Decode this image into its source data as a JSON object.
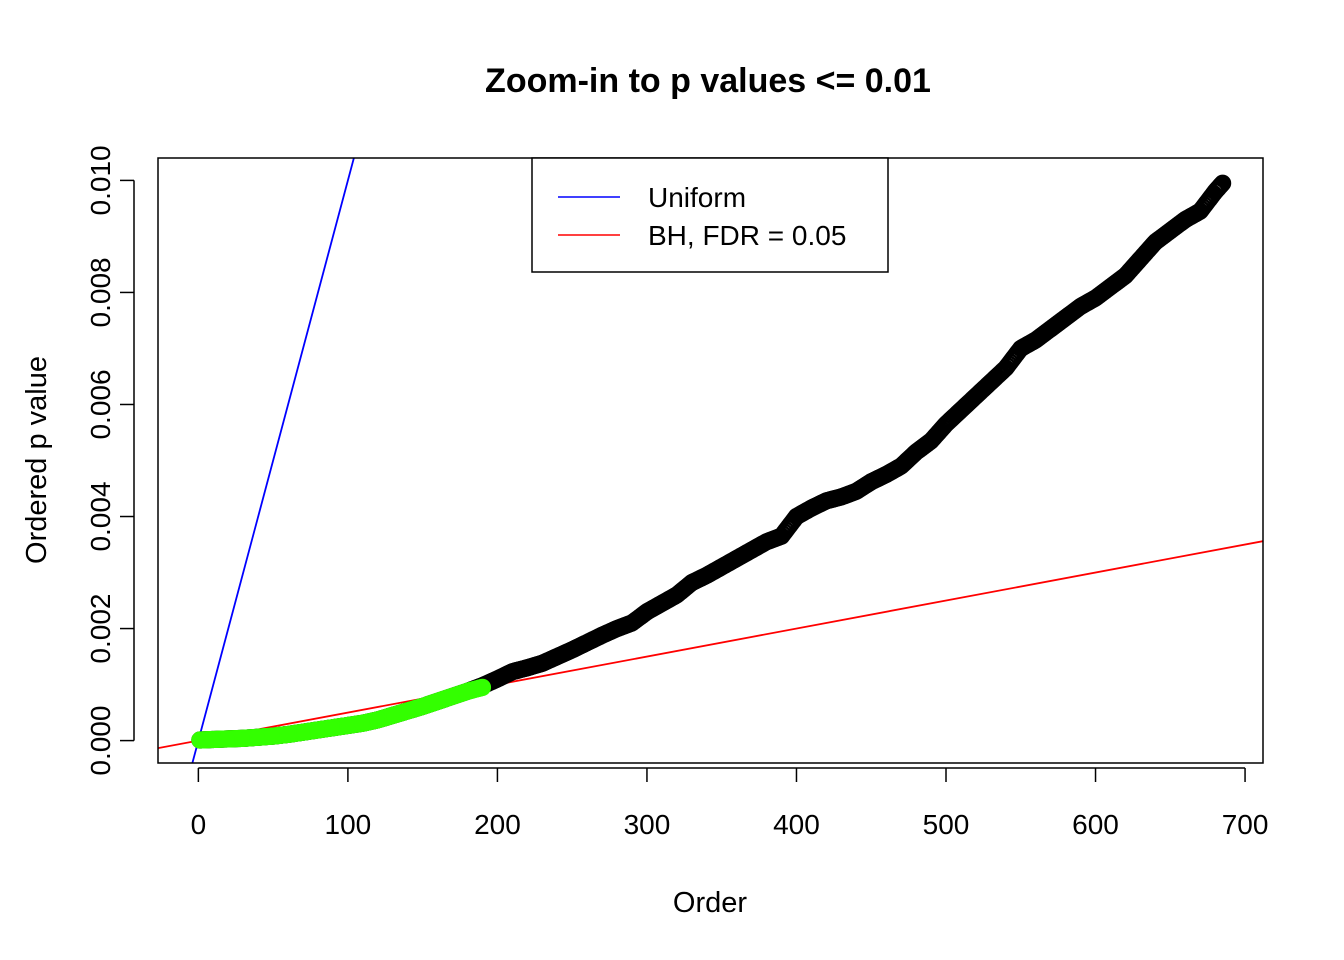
{
  "chart_data": {
    "type": "scatter",
    "title": "Zoom-in to p values <= 0.01",
    "xlabel": "Order",
    "ylabel": "Ordered p value",
    "xlim": [
      -27,
      712
    ],
    "ylim": [
      -0.0004,
      0.0104
    ],
    "x_ticks": [
      0,
      100,
      200,
      300,
      400,
      500,
      600,
      700
    ],
    "x_tick_labels": [
      "0",
      "100",
      "200",
      "300",
      "400",
      "500",
      "600",
      "700"
    ],
    "y_ticks": [
      0,
      0.002,
      0.004,
      0.006,
      0.008,
      0.01
    ],
    "y_tick_labels": [
      "0.000",
      "0.002",
      "0.004",
      "0.006",
      "0.008",
      "0.010"
    ],
    "grid": false,
    "legend_position": "top-center",
    "series": [
      {
        "name": "Uniform",
        "kind": "line",
        "color": "#0000ff",
        "slope": 0.0001,
        "intercept": 0
      },
      {
        "name": "BH, FDR = 0.05",
        "kind": "line",
        "color": "#ff0000",
        "slope": 5e-06,
        "intercept": 0
      },
      {
        "kind": "points",
        "color": "#000000",
        "x": [
          1,
          10,
          20,
          30,
          40,
          50,
          60,
          70,
          80,
          90,
          100,
          110,
          120,
          130,
          140,
          150,
          160,
          170,
          180,
          190,
          200,
          210,
          220,
          230,
          240,
          250,
          260,
          270,
          280,
          290,
          300,
          310,
          320,
          330,
          340,
          350,
          360,
          370,
          380,
          390,
          400,
          410,
          420,
          430,
          440,
          450,
          460,
          470,
          480,
          490,
          500,
          510,
          520,
          530,
          540,
          550,
          560,
          570,
          580,
          590,
          600,
          610,
          620,
          630,
          640,
          650,
          660,
          670,
          680,
          685
        ],
        "y": [
          1e-05,
          2e-05,
          3e-05,
          4e-05,
          6e-05,
          8e-05,
          0.00011,
          0.00015,
          0.00019,
          0.00023,
          0.00027,
          0.00031,
          0.00037,
          0.00045,
          0.00053,
          0.00061,
          0.0007,
          0.00079,
          0.00088,
          0.00098,
          0.0011,
          0.00123,
          0.0013,
          0.00138,
          0.0015,
          0.00162,
          0.00175,
          0.00188,
          0.002,
          0.0021,
          0.0023,
          0.00245,
          0.0026,
          0.00282,
          0.00295,
          0.0031,
          0.00325,
          0.0034,
          0.00355,
          0.00365,
          0.004,
          0.00415,
          0.00428,
          0.00435,
          0.00445,
          0.00462,
          0.00475,
          0.0049,
          0.00515,
          0.00535,
          0.00565,
          0.0059,
          0.00615,
          0.0064,
          0.00665,
          0.007,
          0.00715,
          0.00735,
          0.00755,
          0.00775,
          0.0079,
          0.0081,
          0.0083,
          0.0086,
          0.0089,
          0.0091,
          0.0093,
          0.00945,
          0.0098,
          0.00995
        ]
      },
      {
        "kind": "points",
        "color": "#33ff00",
        "x": [
          1,
          10,
          20,
          30,
          40,
          50,
          60,
          70,
          80,
          90,
          100,
          110,
          120,
          130,
          140,
          150,
          160,
          170,
          180,
          190
        ],
        "y": [
          1e-05,
          2e-05,
          3e-05,
          4e-05,
          6e-05,
          8e-05,
          0.00011,
          0.00015,
          0.00019,
          0.00023,
          0.00027,
          0.00031,
          0.00037,
          0.00045,
          0.00053,
          0.00061,
          0.0007,
          0.00079,
          0.00088,
          0.00095
        ]
      }
    ]
  }
}
